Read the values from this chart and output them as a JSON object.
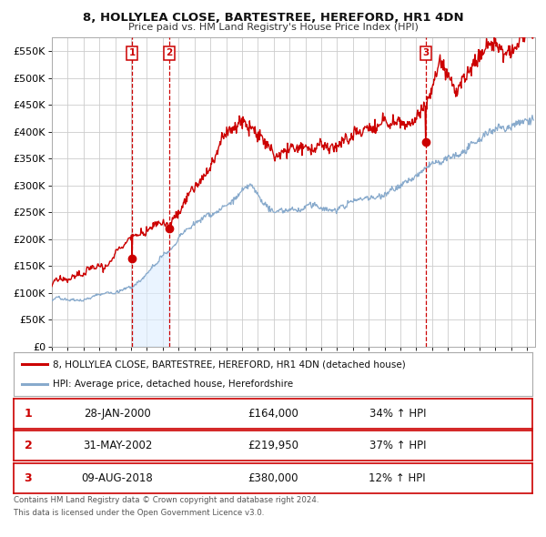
{
  "title": "8, HOLLYLEA CLOSE, BARTESTREE, HEREFORD, HR1 4DN",
  "subtitle": "Price paid vs. HM Land Registry's House Price Index (HPI)",
  "xlim": [
    1995.0,
    2025.5
  ],
  "ylim": [
    0,
    575000
  ],
  "yticks": [
    0,
    50000,
    100000,
    150000,
    200000,
    250000,
    300000,
    350000,
    400000,
    450000,
    500000,
    550000
  ],
  "ytick_labels": [
    "£0",
    "£50K",
    "£100K",
    "£150K",
    "£200K",
    "£250K",
    "£300K",
    "£350K",
    "£400K",
    "£450K",
    "£500K",
    "£550K"
  ],
  "xticks": [
    1995,
    1996,
    1997,
    1998,
    1999,
    2000,
    2001,
    2002,
    2003,
    2004,
    2005,
    2006,
    2007,
    2008,
    2009,
    2010,
    2011,
    2012,
    2013,
    2014,
    2015,
    2016,
    2017,
    2018,
    2019,
    2020,
    2021,
    2022,
    2023,
    2024,
    2025
  ],
  "red_color": "#cc0000",
  "blue_color": "#88aacc",
  "blue_fill_color": "#ddeeff",
  "grid_color": "#cccccc",
  "bg_color": "#ffffff",
  "sale_color": "#cc0000",
  "purchases": [
    {
      "num": 1,
      "date_x": 2000.07,
      "price": 164000,
      "label": "28-JAN-2000",
      "price_label": "£164,000"
    },
    {
      "num": 2,
      "date_x": 2002.42,
      "price": 219950,
      "label": "31-MAY-2002",
      "price_label": "£219,950"
    },
    {
      "num": 3,
      "date_x": 2018.6,
      "price": 380000,
      "label": "09-AUG-2018",
      "price_label": "£380,000"
    }
  ],
  "legend_red_label": "8, HOLLYLEA CLOSE, BARTESTREE, HEREFORD, HR1 4DN (detached house)",
  "legend_blue_label": "HPI: Average price, detached house, Herefordshire",
  "footer_line1": "Contains HM Land Registry data © Crown copyright and database right 2024.",
  "footer_line2": "This data is licensed under the Open Government Licence v3.0.",
  "table_rows": [
    {
      "num": 1,
      "date": "28-JAN-2000",
      "price": "£164,000",
      "hpi": "34% ↑ HPI"
    },
    {
      "num": 2,
      "date": "31-MAY-2002",
      "price": "£219,950",
      "hpi": "37% ↑ HPI"
    },
    {
      "num": 3,
      "date": "09-AUG-2018",
      "price": "£380,000",
      "hpi": "12% ↑ HPI"
    }
  ]
}
